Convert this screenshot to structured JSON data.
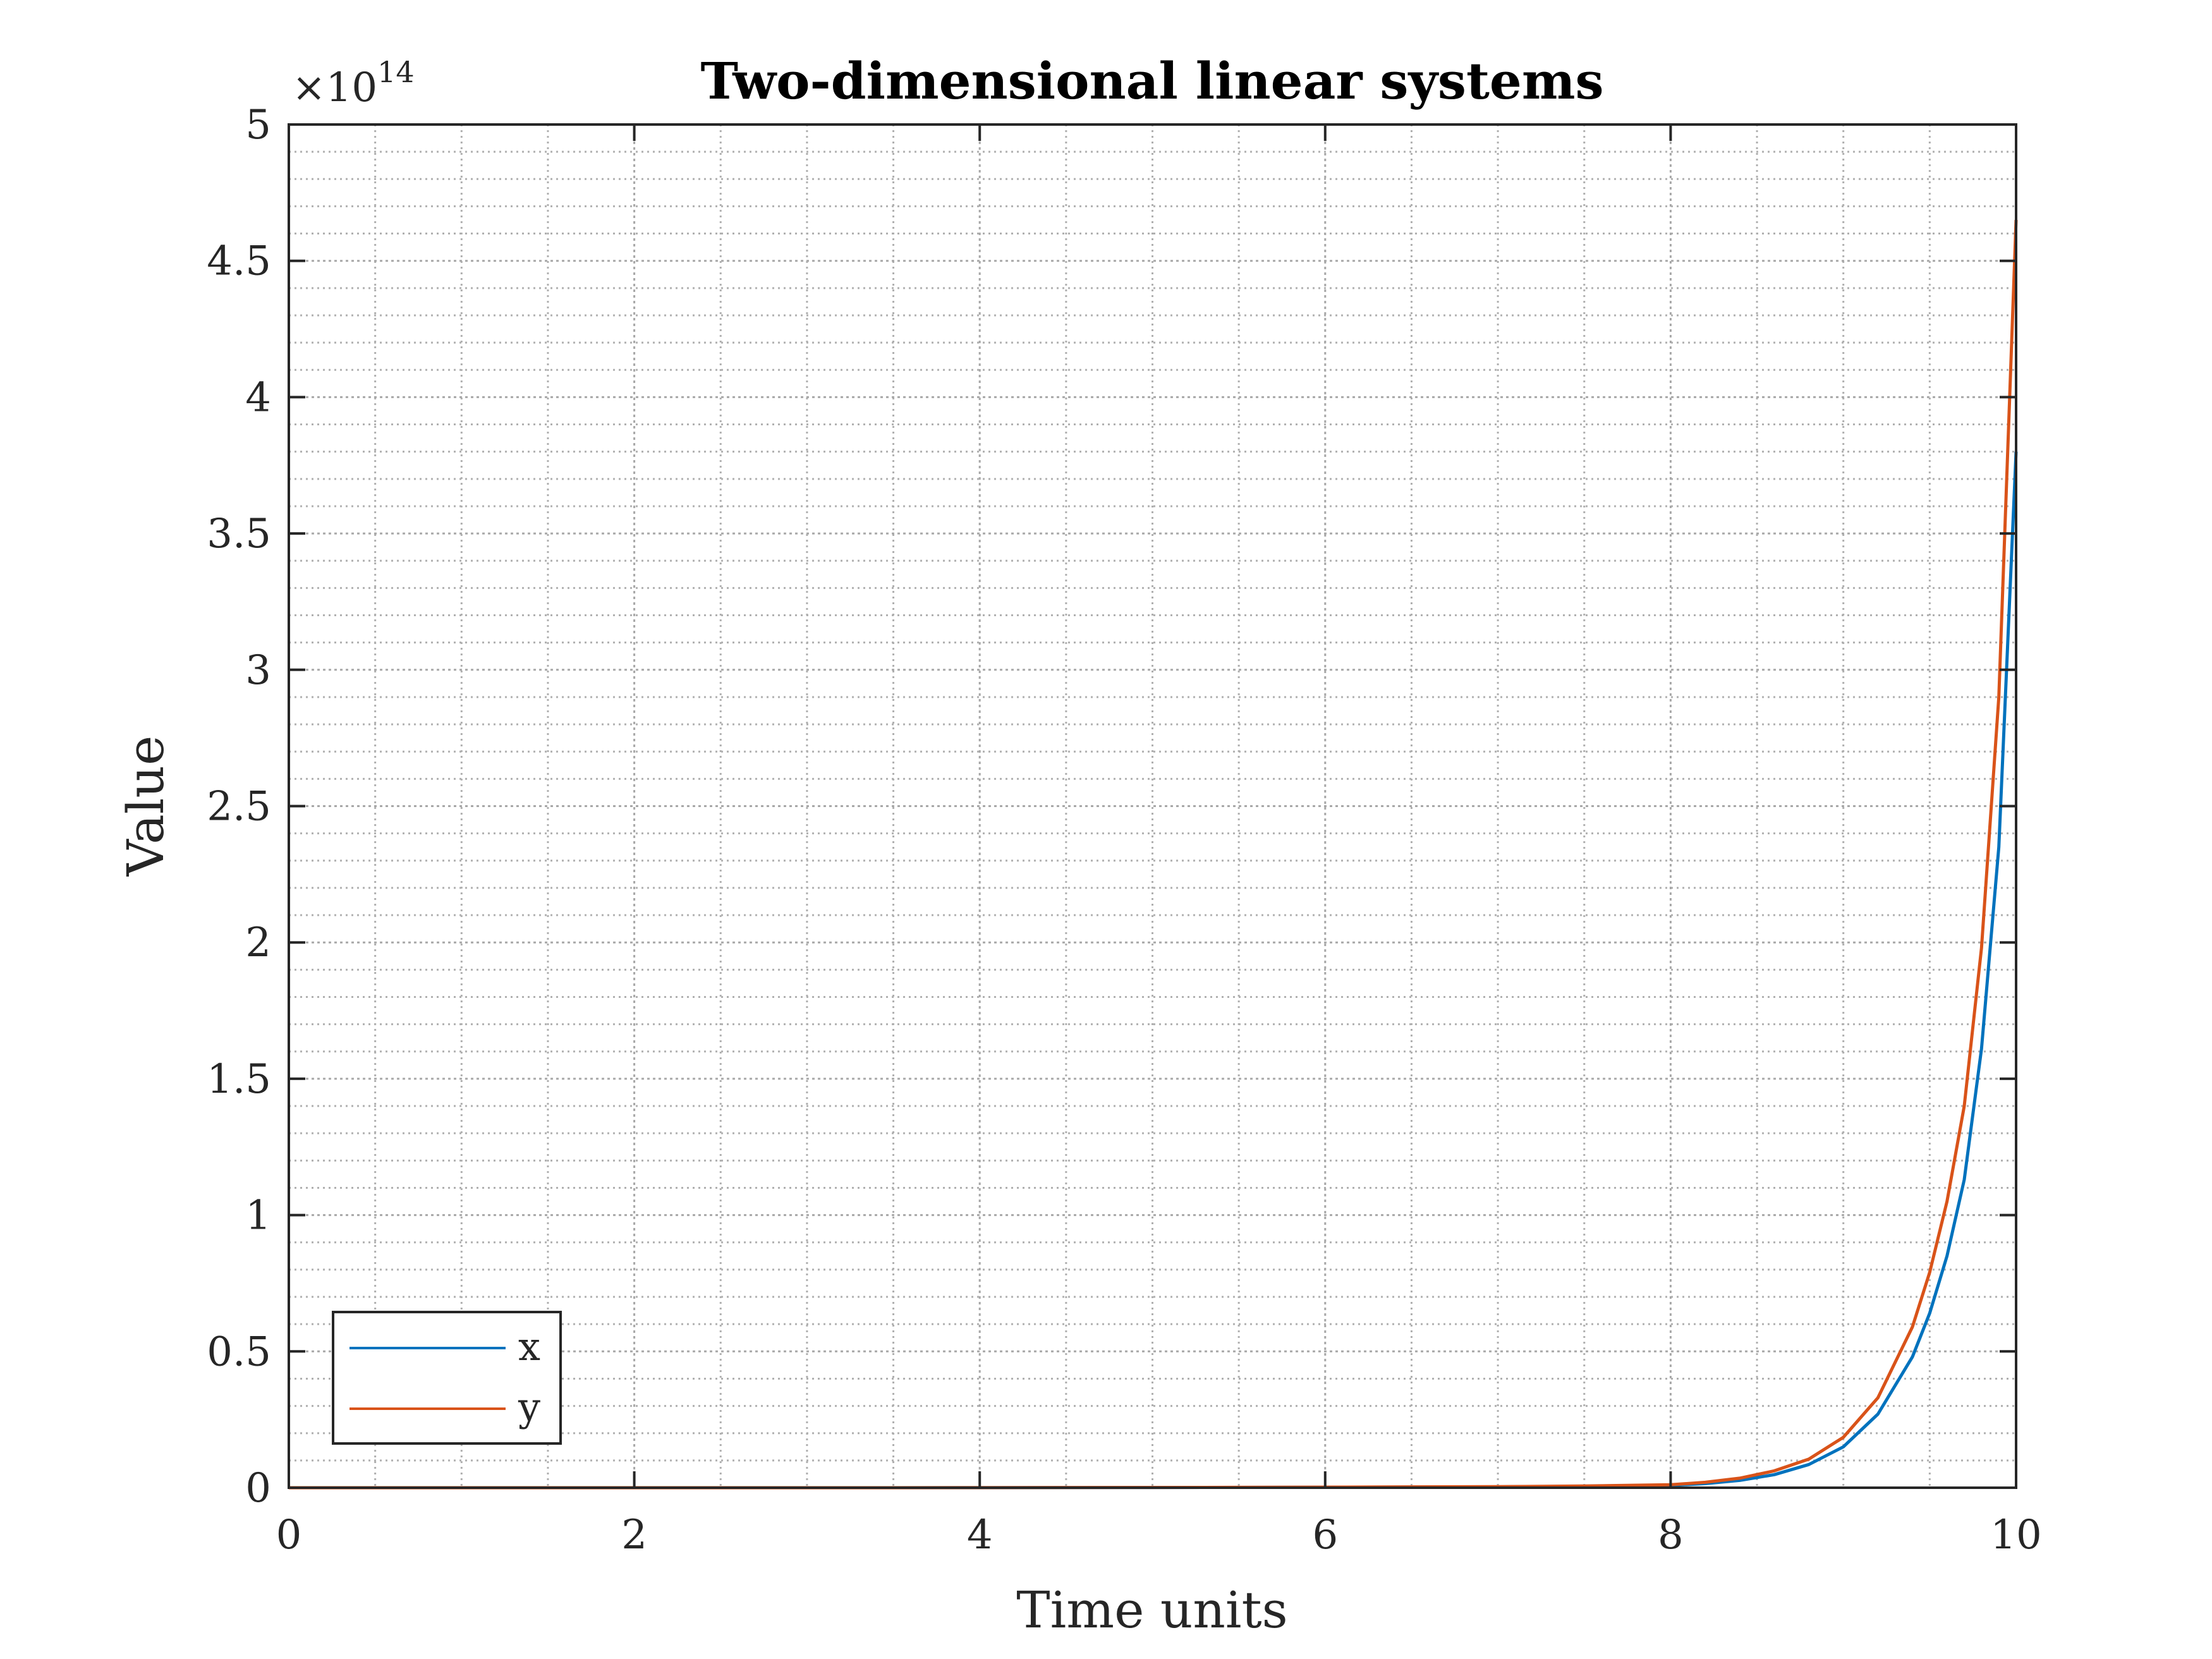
{
  "chart_data": {
    "type": "line",
    "title": "Two-dimensional linear systems",
    "xlabel": "Time units",
    "ylabel": "Value",
    "y_exponent_label": "×10",
    "y_exponent_power": "14",
    "y_multiplier": 100000000000000.0,
    "xlim": [
      0,
      10
    ],
    "ylim": [
      0,
      5
    ],
    "x_ticks": [
      0,
      2,
      4,
      6,
      8,
      10
    ],
    "x_tick_labels": [
      "0",
      "2",
      "4",
      "6",
      "8",
      "10"
    ],
    "y_ticks": [
      0,
      0.5,
      1,
      1.5,
      2,
      2.5,
      3,
      3.5,
      4,
      4.5,
      5
    ],
    "y_tick_labels": [
      "0",
      "0.5",
      "1",
      "1.5",
      "2",
      "2.5",
      "3",
      "3.5",
      "4",
      "4.5",
      "5"
    ],
    "grid": true,
    "minor_grid": true,
    "legend_position": "bottom-left",
    "x": [
      0,
      1,
      2,
      3,
      4,
      5,
      6,
      7,
      7.5,
      8,
      8.2,
      8.4,
      8.6,
      8.8,
      9,
      9.2,
      9.4,
      9.5,
      9.6,
      9.7,
      9.8,
      9.9,
      10
    ],
    "series": [
      {
        "name": "x",
        "color": "#0072BD",
        "values": [
          0,
          0,
          0,
          0.0001,
          0.0003,
          0.001,
          0.002,
          0.0035,
          0.0055,
          0.0085,
          0.015,
          0.027,
          0.048,
          0.085,
          0.15,
          0.27,
          0.48,
          0.64,
          0.85,
          1.13,
          1.61,
          2.35,
          3.8
        ]
      },
      {
        "name": "y",
        "color": "#D95319",
        "values": [
          0,
          0,
          0,
          0.0001,
          0.0003,
          0.001,
          0.002,
          0.004,
          0.0065,
          0.011,
          0.02,
          0.035,
          0.062,
          0.105,
          0.185,
          0.33,
          0.59,
          0.79,
          1.05,
          1.4,
          1.98,
          2.9,
          4.65
        ]
      }
    ]
  }
}
